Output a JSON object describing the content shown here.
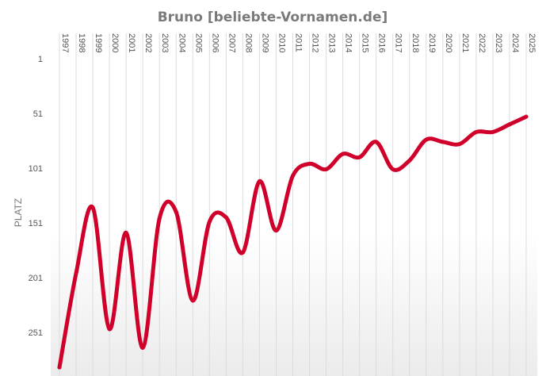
{
  "chart_data": {
    "type": "line",
    "title": "Bruno [beliebte-Vornamen.de]",
    "ylabel": "PLATZ",
    "xlabel": "",
    "y_reversed": true,
    "ylim": [
      1,
      281
    ],
    "yticks": [
      "1",
      "51",
      "101",
      "151",
      "201",
      "251"
    ],
    "ytick_values": [
      1,
      51,
      101,
      151,
      201,
      251
    ],
    "categories": [
      "1997",
      "1998",
      "1999",
      "2000",
      "2001",
      "2002",
      "2003",
      "2004",
      "2005",
      "2006",
      "2007",
      "2008",
      "2009",
      "2010",
      "2011",
      "2012",
      "2013",
      "2014",
      "2015",
      "2016",
      "2017",
      "2018",
      "2019",
      "2020",
      "2021",
      "2022",
      "2023",
      "2024",
      "2025"
    ],
    "series": [
      {
        "name": "",
        "color": "#d0002a",
        "values": [
          283,
          197,
          137,
          248,
          160,
          265,
          147,
          141,
          222,
          150,
          146,
          178,
          113,
          158,
          108,
          97,
          102,
          88,
          91,
          77,
          102,
          94,
          75,
          77,
          79,
          68,
          68,
          61,
          54
        ]
      }
    ],
    "grid": true,
    "colors": {
      "line": "#d0002a",
      "grid": "#dcdcdc",
      "background_gradient_bottom": "#ededed"
    }
  }
}
